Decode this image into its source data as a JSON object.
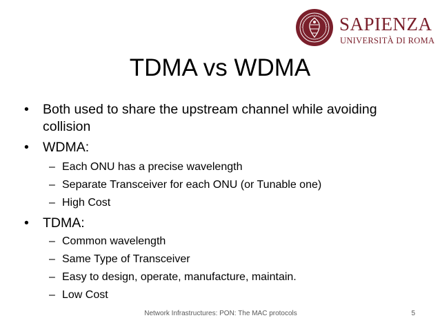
{
  "logo": {
    "name": "Sapienza",
    "subtitle": "Università di Roma",
    "seal_text": "SAPIENZA",
    "color": "#7a1f2b"
  },
  "slide": {
    "title": "TDMA vs WDMA",
    "bullets": [
      {
        "text": "Both used to share the upstream channel while avoiding",
        "continuation": "collision",
        "sub": []
      },
      {
        "text": "WDMA:",
        "sub": [
          "Each ONU has a precise wavelength",
          "Separate Transceiver for each ONU (or Tunable one)",
          "High Cost"
        ]
      },
      {
        "text": "TDMA:",
        "sub": [
          "Common wavelength",
          "Same Type of Transceiver",
          "Easy to design, operate, manufacture, maintain.",
          "Low Cost"
        ]
      }
    ]
  },
  "footer": {
    "text": "Network Infrastructures: PON: The MAC protocols",
    "page": "5"
  }
}
